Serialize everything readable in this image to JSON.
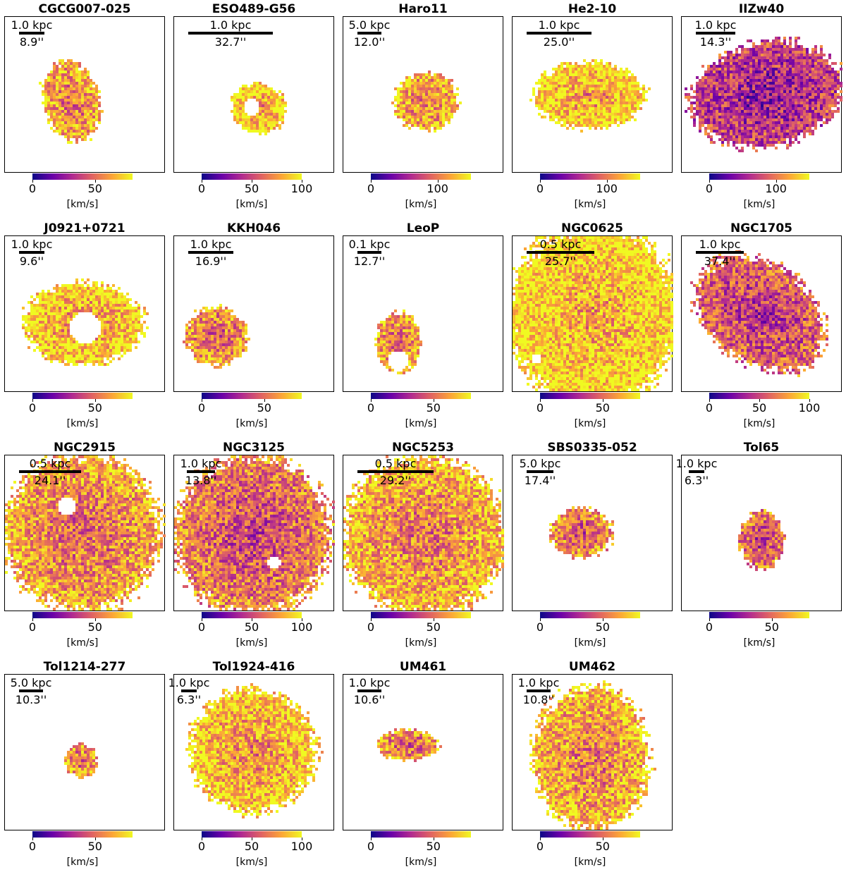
{
  "colorbar": {
    "colormap": "plasma",
    "colors": [
      "#0d0887",
      "#6a00a8",
      "#b12a90",
      "#e16462",
      "#fca636",
      "#f0f921"
    ],
    "unit": "[km/s]"
  },
  "panels": [
    {
      "title": "CGCG007-025",
      "scale_kpc": "1.0 kpc",
      "scale_arcsec": "8.9''",
      "ticks": [
        "0",
        "50"
      ],
      "vmax": 80
    },
    {
      "title": "ESO489-G56",
      "scale_kpc": "1.0 kpc",
      "scale_arcsec": "32.7''",
      "ticks": [
        "0",
        "50",
        "100"
      ],
      "vmax": 100
    },
    {
      "title": "Haro11",
      "scale_kpc": "5.0 kpc",
      "scale_arcsec": "12.0''",
      "ticks": [
        "0",
        "100"
      ],
      "vmax": 150
    },
    {
      "title": "He2-10",
      "scale_kpc": "1.0 kpc",
      "scale_arcsec": "25.0''",
      "ticks": [
        "0",
        "100"
      ],
      "vmax": 150
    },
    {
      "title": "IIZw40",
      "scale_kpc": "1.0 kpc",
      "scale_arcsec": "14.3''",
      "ticks": [
        "0",
        "100"
      ],
      "vmax": 150
    },
    {
      "title": "J0921+0721",
      "scale_kpc": "1.0 kpc",
      "scale_arcsec": "9.6''",
      "ticks": [
        "0",
        "50"
      ],
      "vmax": 80
    },
    {
      "title": "KKH046",
      "scale_kpc": "1.0 kpc",
      "scale_arcsec": "16.9''",
      "ticks": [
        "0",
        "50"
      ],
      "vmax": 80
    },
    {
      "title": "LeoP",
      "scale_kpc": "0.1 kpc",
      "scale_arcsec": "12.7''",
      "ticks": [
        "0",
        "50"
      ],
      "vmax": 80
    },
    {
      "title": "NGC0625",
      "scale_kpc": "0.5 kpc",
      "scale_arcsec": "25.7''",
      "ticks": [
        "0",
        "50"
      ],
      "vmax": 80
    },
    {
      "title": "NGC1705",
      "scale_kpc": "1.0 kpc",
      "scale_arcsec": "37.4''",
      "ticks": [
        "0",
        "50",
        "100"
      ],
      "vmax": 100
    },
    {
      "title": "NGC2915",
      "scale_kpc": "0.5 kpc",
      "scale_arcsec": "24.1''",
      "ticks": [
        "0",
        "50"
      ],
      "vmax": 80
    },
    {
      "title": "NGC3125",
      "scale_kpc": "1.0 kpc",
      "scale_arcsec": "13.8''",
      "ticks": [
        "0",
        "50",
        "100"
      ],
      "vmax": 100
    },
    {
      "title": "NGC5253",
      "scale_kpc": "0.5 kpc",
      "scale_arcsec": "29.2''",
      "ticks": [
        "0",
        "50"
      ],
      "vmax": 80
    },
    {
      "title": "SBS0335-052",
      "scale_kpc": "5.0 kpc",
      "scale_arcsec": "17.4''",
      "ticks": [
        "0",
        "50"
      ],
      "vmax": 80
    },
    {
      "title": "Tol65",
      "scale_kpc": "1.0 kpc",
      "scale_arcsec": "6.3''",
      "ticks": [
        "0",
        "50"
      ],
      "vmax": 80
    },
    {
      "title": "Tol1214-277",
      "scale_kpc": "5.0 kpc",
      "scale_arcsec": "10.3''",
      "ticks": [
        "0",
        "50"
      ],
      "vmax": 80
    },
    {
      "title": "Tol1924-416",
      "scale_kpc": "1.0 kpc",
      "scale_arcsec": "6.3''",
      "ticks": [
        "0",
        "50",
        "100"
      ],
      "vmax": 100
    },
    {
      "title": "UM461",
      "scale_kpc": "1.0 kpc",
      "scale_arcsec": "10.6''",
      "ticks": [
        "0",
        "50"
      ],
      "vmax": 80
    },
    {
      "title": "UM462",
      "scale_kpc": "1.0 kpc",
      "scale_arcsec": "10.8''",
      "ticks": [
        "0",
        "50"
      ],
      "vmax": 80
    }
  ]
}
